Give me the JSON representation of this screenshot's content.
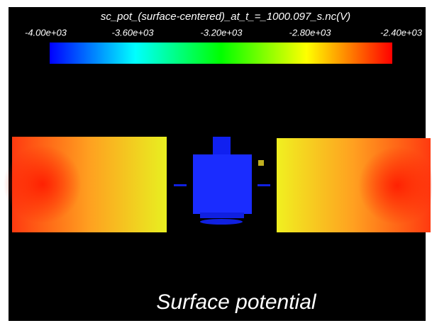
{
  "colorbar": {
    "title": "sc_pot_(surface-centered)_at_t_=_1000.097_s.nc(V)",
    "ticks": [
      "-4.00e+03",
      "-3.60e+03",
      "-3.20e+03",
      "-2.80e+03",
      "-2.40e+03"
    ]
  },
  "caption": "Surface potential"
}
